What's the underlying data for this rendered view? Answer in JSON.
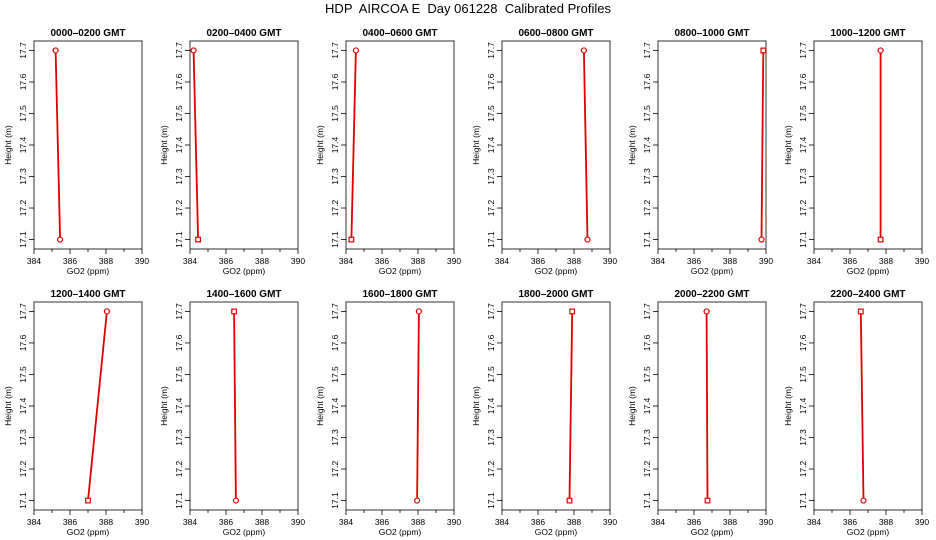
{
  "title": "HDP  AIRCOA E  Day 061228  Calibrated Profiles",
  "chart_data": [
    {
      "type": "line",
      "title": "0000–0200 GMT",
      "xlabel": "GO2 (ppm)",
      "ylabel": "Height (m)",
      "xlim": [
        384,
        390
      ],
      "ylim": [
        17.07,
        17.73
      ],
      "x_ticks": [
        384,
        386,
        388,
        390
      ],
      "y_ticks": [
        17.1,
        17.2,
        17.3,
        17.4,
        17.5,
        17.6,
        17.7
      ],
      "series": [
        {
          "values": [
            {
              "x": 385.45,
              "y": 17.1
            },
            {
              "x": 385.2,
              "y": 17.7
            }
          ],
          "line_color": "#e00000",
          "markers": [
            "circle",
            "circle"
          ]
        }
      ]
    },
    {
      "type": "line",
      "title": "0200–0400 GMT",
      "xlabel": "GO2 (ppm)",
      "ylabel": "Height (m)",
      "xlim": [
        384,
        390
      ],
      "ylim": [
        17.07,
        17.73
      ],
      "x_ticks": [
        384,
        386,
        388,
        390
      ],
      "y_ticks": [
        17.1,
        17.2,
        17.3,
        17.4,
        17.5,
        17.6,
        17.7
      ],
      "series": [
        {
          "values": [
            {
              "x": 384.45,
              "y": 17.1
            },
            {
              "x": 384.2,
              "y": 17.7
            }
          ],
          "line_color": "#e00000",
          "markers": [
            "square",
            "circle"
          ]
        }
      ]
    },
    {
      "type": "line",
      "title": "0400–0600 GMT",
      "xlabel": "GO2 (ppm)",
      "ylabel": "Height (m)",
      "xlim": [
        384,
        390
      ],
      "ylim": [
        17.07,
        17.73
      ],
      "x_ticks": [
        384,
        386,
        388,
        390
      ],
      "y_ticks": [
        17.1,
        17.2,
        17.3,
        17.4,
        17.5,
        17.6,
        17.7
      ],
      "series": [
        {
          "values": [
            {
              "x": 384.3,
              "y": 17.1
            },
            {
              "x": 384.55,
              "y": 17.7
            }
          ],
          "line_color": "#e00000",
          "markers": [
            "square",
            "circle"
          ]
        }
      ]
    },
    {
      "type": "line",
      "title": "0600–0800 GMT",
      "xlabel": "GO2 (ppm)",
      "ylabel": "Height (m)",
      "xlim": [
        384,
        390
      ],
      "ylim": [
        17.07,
        17.73
      ],
      "x_ticks": [
        384,
        386,
        388,
        390
      ],
      "y_ticks": [
        17.1,
        17.2,
        17.3,
        17.4,
        17.5,
        17.6,
        17.7
      ],
      "series": [
        {
          "values": [
            {
              "x": 388.75,
              "y": 17.1
            },
            {
              "x": 388.55,
              "y": 17.7
            }
          ],
          "line_color": "#e00000",
          "markers": [
            "circle",
            "circle"
          ]
        }
      ]
    },
    {
      "type": "line",
      "title": "0800–1000 GMT",
      "xlabel": "GO2 (ppm)",
      "ylabel": "Height (m)",
      "xlim": [
        384,
        390
      ],
      "ylim": [
        17.07,
        17.73
      ],
      "x_ticks": [
        384,
        386,
        388,
        390
      ],
      "y_ticks": [
        17.1,
        17.2,
        17.3,
        17.4,
        17.5,
        17.6,
        17.7
      ],
      "series": [
        {
          "values": [
            {
              "x": 389.75,
              "y": 17.1
            },
            {
              "x": 389.85,
              "y": 17.7
            }
          ],
          "line_color": "#e00000",
          "markers": [
            "circle",
            "square"
          ]
        }
      ]
    },
    {
      "type": "line",
      "title": "1000–1200 GMT",
      "xlabel": "GO2 (ppm)",
      "ylabel": "Height (m)",
      "xlim": [
        384,
        390
      ],
      "ylim": [
        17.07,
        17.73
      ],
      "x_ticks": [
        384,
        386,
        388,
        390
      ],
      "y_ticks": [
        17.1,
        17.2,
        17.3,
        17.4,
        17.5,
        17.6,
        17.7
      ],
      "series": [
        {
          "values": [
            {
              "x": 387.7,
              "y": 17.1
            },
            {
              "x": 387.7,
              "y": 17.7
            }
          ],
          "line_color": "#e00000",
          "markers": [
            "square",
            "circle"
          ]
        }
      ]
    },
    {
      "type": "line",
      "title": "1200–1400 GMT",
      "xlabel": "GO2 (ppm)",
      "ylabel": "Height (m)",
      "xlim": [
        384,
        390
      ],
      "ylim": [
        17.07,
        17.73
      ],
      "x_ticks": [
        384,
        386,
        388,
        390
      ],
      "y_ticks": [
        17.1,
        17.2,
        17.3,
        17.4,
        17.5,
        17.6,
        17.7
      ],
      "series": [
        {
          "values": [
            {
              "x": 387.0,
              "y": 17.1
            },
            {
              "x": 388.05,
              "y": 17.7
            }
          ],
          "line_color": "#e00000",
          "markers": [
            "square",
            "circle"
          ]
        }
      ]
    },
    {
      "type": "line",
      "title": "1400–1600 GMT",
      "xlabel": "GO2 (ppm)",
      "ylabel": "Height (m)",
      "xlim": [
        384,
        390
      ],
      "ylim": [
        17.07,
        17.73
      ],
      "x_ticks": [
        384,
        386,
        388,
        390
      ],
      "y_ticks": [
        17.1,
        17.2,
        17.3,
        17.4,
        17.5,
        17.6,
        17.7
      ],
      "series": [
        {
          "values": [
            {
              "x": 386.55,
              "y": 17.1
            },
            {
              "x": 386.45,
              "y": 17.7
            }
          ],
          "line_color": "#e00000",
          "markers": [
            "circle",
            "square"
          ]
        }
      ]
    },
    {
      "type": "line",
      "title": "1600–1800 GMT",
      "xlabel": "GO2 (ppm)",
      "ylabel": "Height (m)",
      "xlim": [
        384,
        390
      ],
      "ylim": [
        17.07,
        17.73
      ],
      "x_ticks": [
        384,
        386,
        388,
        390
      ],
      "y_ticks": [
        17.1,
        17.2,
        17.3,
        17.4,
        17.5,
        17.6,
        17.7
      ],
      "series": [
        {
          "values": [
            {
              "x": 387.95,
              "y": 17.1
            },
            {
              "x": 388.05,
              "y": 17.7
            }
          ],
          "line_color": "#e00000",
          "markers": [
            "circle",
            "circle"
          ]
        }
      ]
    },
    {
      "type": "line",
      "title": "1800–2000 GMT",
      "xlabel": "GO2 (ppm)",
      "ylabel": "Height (m)",
      "xlim": [
        384,
        390
      ],
      "ylim": [
        17.07,
        17.73
      ],
      "x_ticks": [
        384,
        386,
        388,
        390
      ],
      "y_ticks": [
        17.1,
        17.2,
        17.3,
        17.4,
        17.5,
        17.6,
        17.7
      ],
      "series": [
        {
          "values": [
            {
              "x": 387.75,
              "y": 17.1
            },
            {
              "x": 387.9,
              "y": 17.7
            }
          ],
          "line_color": "#e00000",
          "markers": [
            "square",
            "square"
          ]
        }
      ]
    },
    {
      "type": "line",
      "title": "2000–2200 GMT",
      "xlabel": "GO2 (ppm)",
      "ylabel": "Height (m)",
      "xlim": [
        384,
        390
      ],
      "ylim": [
        17.07,
        17.73
      ],
      "x_ticks": [
        384,
        386,
        388,
        390
      ],
      "y_ticks": [
        17.1,
        17.2,
        17.3,
        17.4,
        17.5,
        17.6,
        17.7
      ],
      "series": [
        {
          "values": [
            {
              "x": 386.75,
              "y": 17.1
            },
            {
              "x": 386.7,
              "y": 17.7
            }
          ],
          "line_color": "#e00000",
          "markers": [
            "square",
            "circle"
          ]
        }
      ]
    },
    {
      "type": "line",
      "title": "2200–2400 GMT",
      "xlabel": "GO2 (ppm)",
      "ylabel": "Height (m)",
      "xlim": [
        384,
        390
      ],
      "ylim": [
        17.07,
        17.73
      ],
      "x_ticks": [
        384,
        386,
        388,
        390
      ],
      "y_ticks": [
        17.1,
        17.2,
        17.3,
        17.4,
        17.5,
        17.6,
        17.7
      ],
      "series": [
        {
          "values": [
            {
              "x": 386.75,
              "y": 17.1
            },
            {
              "x": 386.6,
              "y": 17.7
            }
          ],
          "line_color": "#e00000",
          "markers": [
            "circle",
            "square"
          ]
        }
      ]
    }
  ]
}
